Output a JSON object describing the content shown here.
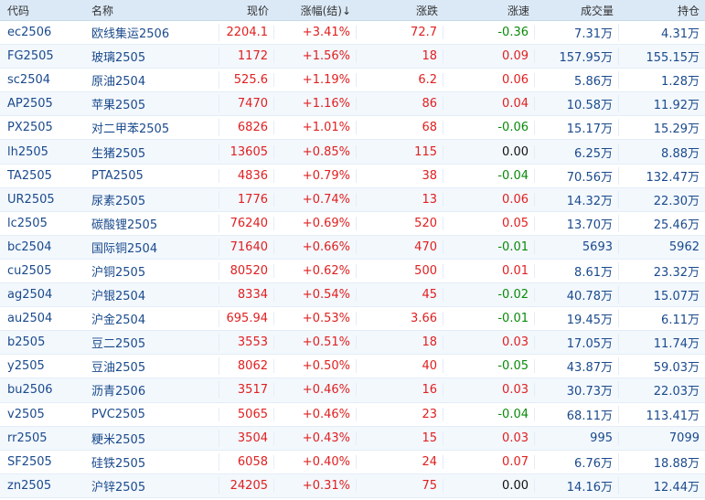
{
  "colors": {
    "header_bg": "#dbe9f7",
    "up": "#e02020",
    "down": "#0a8a0a",
    "text": "#1a4a8c"
  },
  "columns": [
    "代码",
    "名称",
    "现价",
    "涨幅(结)↓",
    "涨跌",
    "涨速",
    "成交量",
    "持仓"
  ],
  "rows": [
    {
      "code": "ec2506",
      "name": "欧线集运2506",
      "price": "2204.1",
      "pct": "+3.41%",
      "chg": "72.7",
      "speed": "-0.36",
      "vol": "7.31万",
      "oi": "4.31万"
    },
    {
      "code": "FG2505",
      "name": "玻璃2505",
      "price": "1172",
      "pct": "+1.56%",
      "chg": "18",
      "speed": "0.09",
      "vol": "157.95万",
      "oi": "155.15万"
    },
    {
      "code": "sc2504",
      "name": "原油2504",
      "price": "525.6",
      "pct": "+1.19%",
      "chg": "6.2",
      "speed": "0.06",
      "vol": "5.86万",
      "oi": "1.28万"
    },
    {
      "code": "AP2505",
      "name": "苹果2505",
      "price": "7470",
      "pct": "+1.16%",
      "chg": "86",
      "speed": "0.04",
      "vol": "10.58万",
      "oi": "11.92万"
    },
    {
      "code": "PX2505",
      "name": "对二甲苯2505",
      "price": "6826",
      "pct": "+1.01%",
      "chg": "68",
      "speed": "-0.06",
      "vol": "15.17万",
      "oi": "15.29万"
    },
    {
      "code": "lh2505",
      "name": "生猪2505",
      "price": "13605",
      "pct": "+0.85%",
      "chg": "115",
      "speed": "0.00",
      "vol": "6.25万",
      "oi": "8.88万"
    },
    {
      "code": "TA2505",
      "name": "PTA2505",
      "price": "4836",
      "pct": "+0.79%",
      "chg": "38",
      "speed": "-0.04",
      "vol": "70.56万",
      "oi": "132.47万"
    },
    {
      "code": "UR2505",
      "name": "尿素2505",
      "price": "1776",
      "pct": "+0.74%",
      "chg": "13",
      "speed": "0.06",
      "vol": "14.32万",
      "oi": "22.30万"
    },
    {
      "code": "lc2505",
      "name": "碳酸锂2505",
      "price": "76240",
      "pct": "+0.69%",
      "chg": "520",
      "speed": "0.05",
      "vol": "13.70万",
      "oi": "25.46万"
    },
    {
      "code": "bc2504",
      "name": "国际铜2504",
      "price": "71640",
      "pct": "+0.66%",
      "chg": "470",
      "speed": "-0.01",
      "vol": "5693",
      "oi": "5962"
    },
    {
      "code": "cu2505",
      "name": "沪铜2505",
      "price": "80520",
      "pct": "+0.62%",
      "chg": "500",
      "speed": "0.01",
      "vol": "8.61万",
      "oi": "23.32万"
    },
    {
      "code": "ag2504",
      "name": "沪银2504",
      "price": "8334",
      "pct": "+0.54%",
      "chg": "45",
      "speed": "-0.02",
      "vol": "40.78万",
      "oi": "15.07万"
    },
    {
      "code": "au2504",
      "name": "沪金2504",
      "price": "695.94",
      "pct": "+0.53%",
      "chg": "3.66",
      "speed": "-0.01",
      "vol": "19.45万",
      "oi": "6.11万"
    },
    {
      "code": "b2505",
      "name": "豆二2505",
      "price": "3553",
      "pct": "+0.51%",
      "chg": "18",
      "speed": "0.03",
      "vol": "17.05万",
      "oi": "11.74万"
    },
    {
      "code": "y2505",
      "name": "豆油2505",
      "price": "8062",
      "pct": "+0.50%",
      "chg": "40",
      "speed": "-0.05",
      "vol": "43.87万",
      "oi": "59.03万"
    },
    {
      "code": "bu2506",
      "name": "沥青2506",
      "price": "3517",
      "pct": "+0.46%",
      "chg": "16",
      "speed": "0.03",
      "vol": "30.73万",
      "oi": "22.03万"
    },
    {
      "code": "v2505",
      "name": "PVC2505",
      "price": "5065",
      "pct": "+0.46%",
      "chg": "23",
      "speed": "-0.04",
      "vol": "68.11万",
      "oi": "113.41万"
    },
    {
      "code": "rr2505",
      "name": "粳米2505",
      "price": "3504",
      "pct": "+0.43%",
      "chg": "15",
      "speed": "0.03",
      "vol": "995",
      "oi": "7099"
    },
    {
      "code": "SF2505",
      "name": "硅铁2505",
      "price": "6058",
      "pct": "+0.40%",
      "chg": "24",
      "speed": "0.07",
      "vol": "6.76万",
      "oi": "18.88万"
    },
    {
      "code": "zn2505",
      "name": "沪锌2505",
      "price": "24205",
      "pct": "+0.31%",
      "chg": "75",
      "speed": "0.00",
      "vol": "14.16万",
      "oi": "12.44万"
    }
  ]
}
